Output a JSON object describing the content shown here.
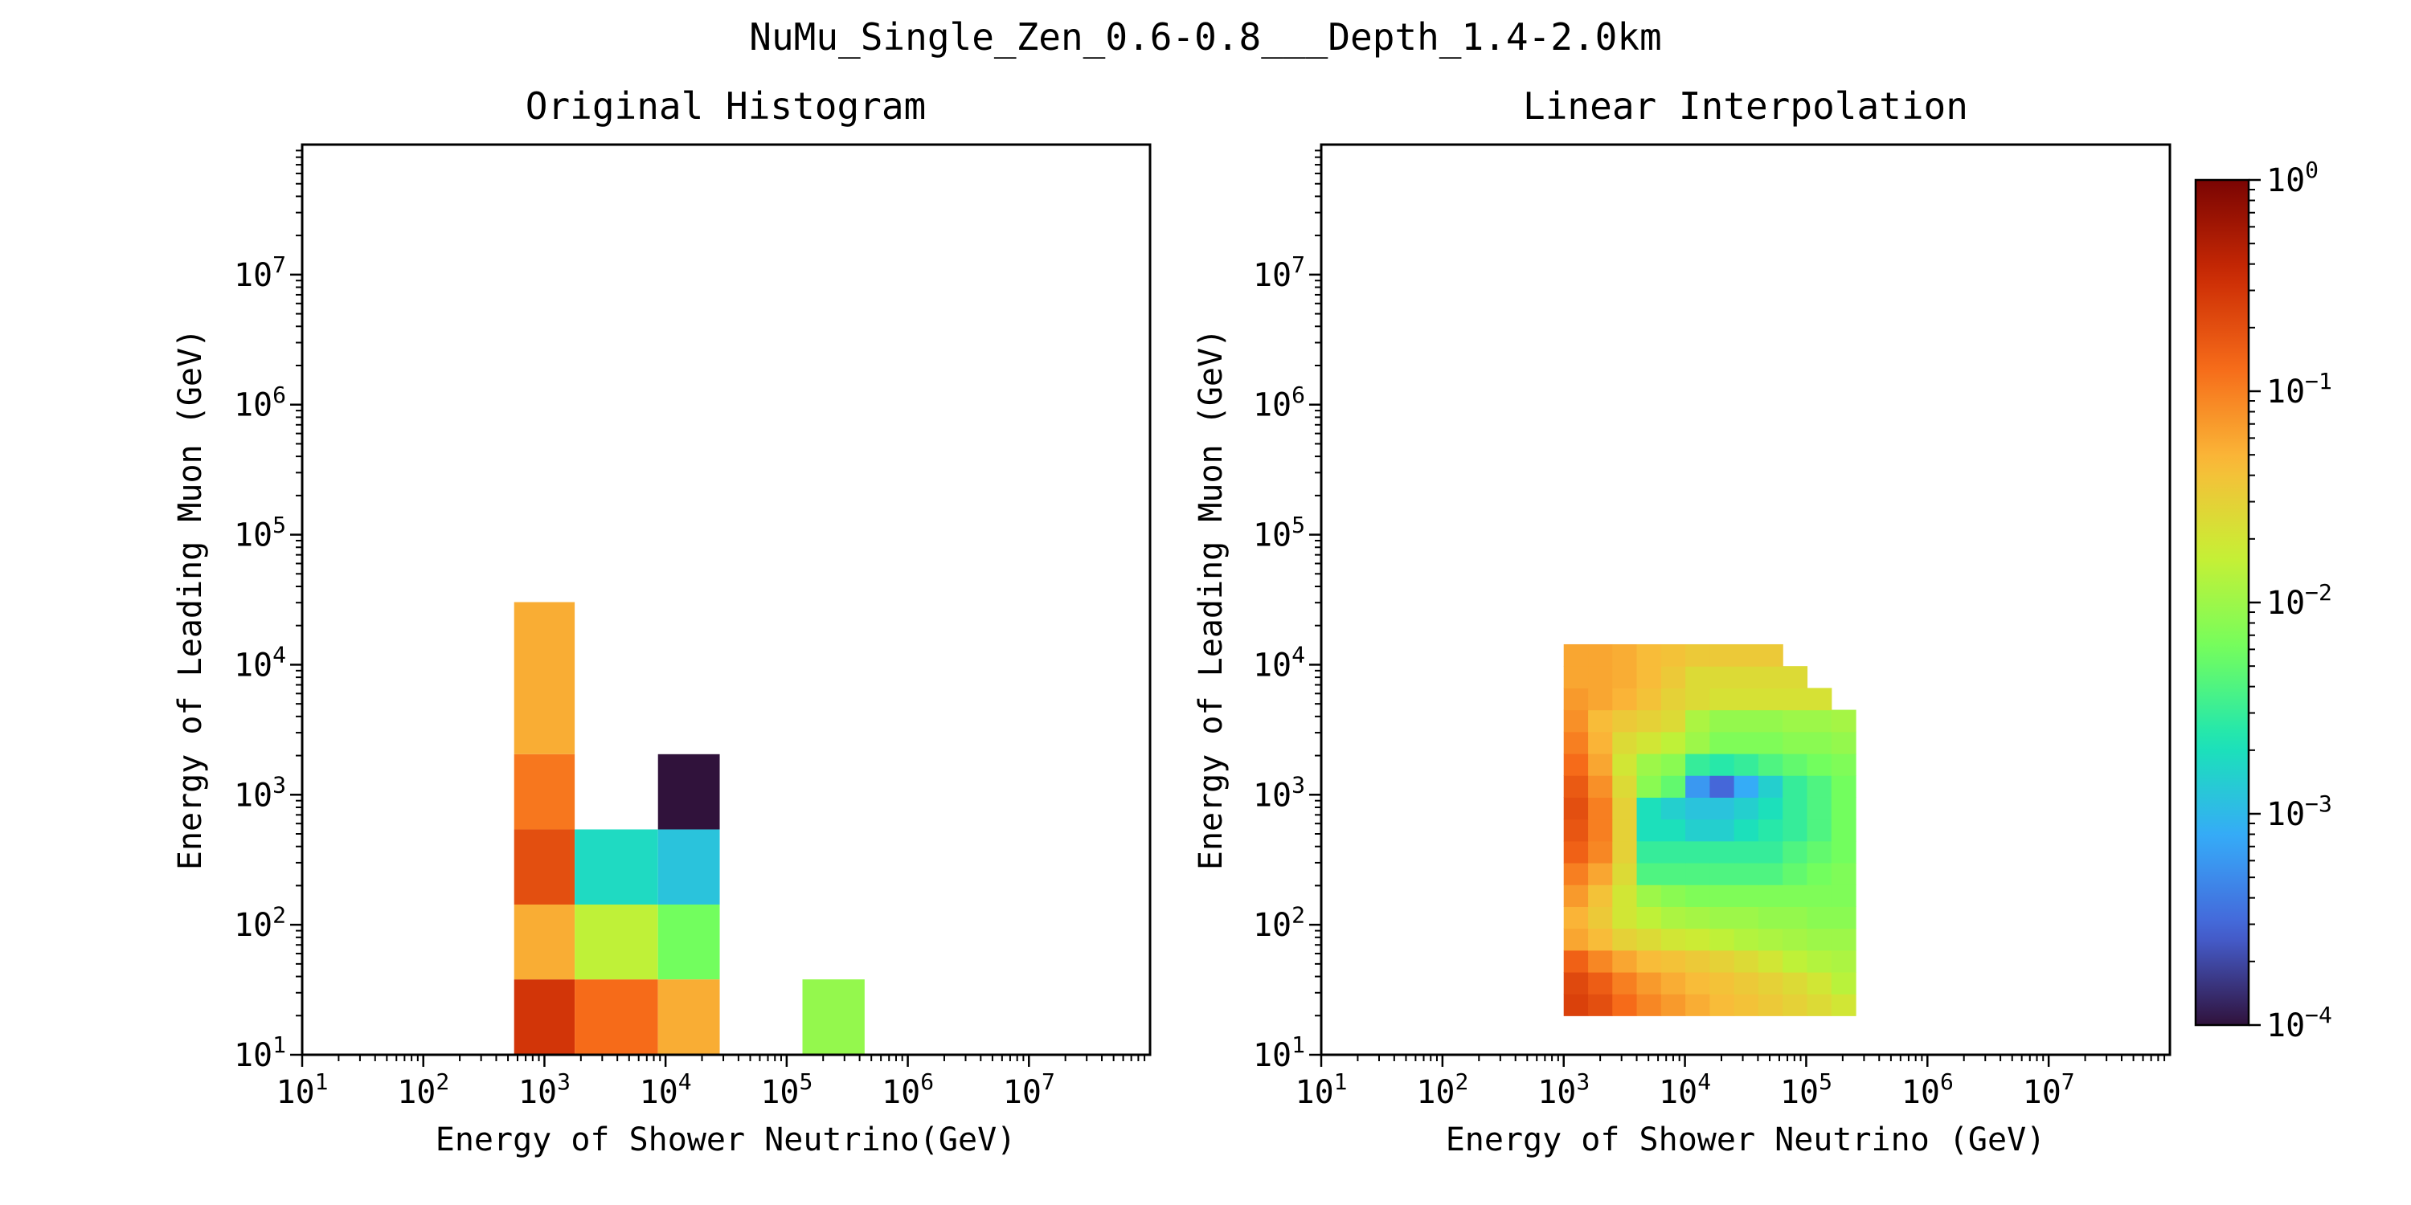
{
  "figure": {
    "suptitle": "NuMu_Single_Zen_0.6-0.8___Depth_1.4-2.0km"
  },
  "colorbar": {
    "scale": "log",
    "range": [
      0.0001,
      1
    ],
    "ticks": [
      0.0001,
      0.001,
      0.01,
      0.1,
      1
    ],
    "tick_labels": [
      {
        "base": "10",
        "exp": "−4"
      },
      {
        "base": "10",
        "exp": "−3"
      },
      {
        "base": "10",
        "exp": "−2"
      },
      {
        "base": "10",
        "exp": "−1"
      },
      {
        "base": "10",
        "exp": "0"
      }
    ],
    "colormap": "turbo",
    "colormap_stops": [
      "#30123b",
      "#4662d7",
      "#36aaf9",
      "#1ae4b6",
      "#72fe5e",
      "#c8ef34",
      "#faba39",
      "#f66b19",
      "#ca2a04",
      "#7a0403"
    ]
  },
  "chart_data": [
    {
      "type": "heatmap",
      "title": "Original Histogram",
      "xlabel": "Energy of Shower Neutrino(GeV)",
      "ylabel": "Energy of Leading Muon (GeV)",
      "x_scale": "log",
      "y_scale": "log",
      "xlim": [
        10,
        100000000
      ],
      "ylim": [
        10,
        100000000
      ],
      "x_ticks": [
        10,
        100,
        1000,
        10000,
        100000,
        1000000,
        10000000
      ],
      "y_ticks": [
        10,
        100,
        1000,
        10000,
        100000,
        1000000,
        10000000
      ],
      "tick_labels": [
        {
          "base": "10",
          "exp": "1"
        },
        {
          "base": "10",
          "exp": "2"
        },
        {
          "base": "10",
          "exp": "3"
        },
        {
          "base": "10",
          "exp": "4"
        },
        {
          "base": "10",
          "exp": "5"
        },
        {
          "base": "10",
          "exp": "6"
        },
        {
          "base": "10",
          "exp": "7"
        }
      ],
      "cells": [
        {
          "x0": 562,
          "x1": 1778,
          "y0": 10,
          "y1": 38,
          "value": 0.3
        },
        {
          "x0": 1778,
          "x1": 8660,
          "y0": 10,
          "y1": 38,
          "value": 0.13
        },
        {
          "x0": 8660,
          "x1": 28000,
          "y0": 10,
          "y1": 38,
          "value": 0.055
        },
        {
          "x0": 135000,
          "x1": 440000,
          "y0": 10,
          "y1": 38,
          "value": 0.009
        },
        {
          "x0": 562,
          "x1": 1778,
          "y0": 38,
          "y1": 143,
          "value": 0.055
        },
        {
          "x0": 1778,
          "x1": 8660,
          "y0": 38,
          "y1": 143,
          "value": 0.015
        },
        {
          "x0": 8660,
          "x1": 28000,
          "y0": 38,
          "y1": 143,
          "value": 0.006
        },
        {
          "x0": 562,
          "x1": 1778,
          "y0": 143,
          "y1": 541,
          "value": 0.2
        },
        {
          "x0": 1778,
          "x1": 8660,
          "y0": 143,
          "y1": 541,
          "value": 0.0018
        },
        {
          "x0": 8660,
          "x1": 28000,
          "y0": 143,
          "y1": 541,
          "value": 0.0012
        },
        {
          "x0": 562,
          "x1": 1778,
          "y0": 541,
          "y1": 2050,
          "value": 0.11
        },
        {
          "x0": 8660,
          "x1": 28000,
          "y0": 541,
          "y1": 2050,
          "value": 0.0001
        },
        {
          "x0": 562,
          "x1": 1778,
          "y0": 2050,
          "y1": 30300,
          "value": 0.055
        }
      ]
    },
    {
      "type": "heatmap",
      "title": "Linear Interpolation",
      "xlabel": "Energy of Shower Neutrino (GeV)",
      "ylabel": "Energy of Leading Muon (GeV)",
      "x_scale": "log",
      "y_scale": "log",
      "xlim": [
        10,
        100000000
      ],
      "ylim": [
        10,
        100000000
      ],
      "x_ticks": [
        10,
        100,
        1000,
        10000,
        100000,
        1000000,
        10000000
      ],
      "y_ticks": [
        10,
        100,
        1000,
        10000,
        100000,
        1000000,
        10000000
      ],
      "tick_labels": [
        {
          "base": "10",
          "exp": "1"
        },
        {
          "base": "10",
          "exp": "2"
        },
        {
          "base": "10",
          "exp": "3"
        },
        {
          "base": "10",
          "exp": "4"
        },
        {
          "base": "10",
          "exp": "5"
        },
        {
          "base": "10",
          "exp": "6"
        },
        {
          "base": "10",
          "exp": "7"
        }
      ],
      "grid": {
        "x_edges": [
          1000,
          1590,
          2520,
          4000,
          6350,
          10080,
          16000,
          25400,
          40300,
          64000,
          101600,
          161300,
          256000
        ],
        "y_edges": [
          20,
          29.4,
          43.3,
          63.8,
          93.9,
          138.3,
          203.6,
          299.8,
          441.4,
          650,
          957,
          1410,
          2075,
          3056,
          4500,
          6626,
          9756,
          14364
        ],
        "values": [
          [
            0.25,
            0.2,
            0.13,
            0.09,
            0.07,
            0.055,
            0.045,
            0.04,
            0.035,
            0.03,
            0.025,
            0.02
          ],
          [
            0.22,
            0.16,
            0.1,
            0.07,
            0.055,
            0.045,
            0.04,
            0.035,
            0.03,
            0.025,
            0.02,
            0.014
          ],
          [
            0.15,
            0.09,
            0.06,
            0.045,
            0.04,
            0.035,
            0.03,
            0.025,
            0.02,
            0.015,
            0.013,
            0.012
          ],
          [
            0.06,
            0.045,
            0.03,
            0.025,
            0.02,
            0.018,
            0.015,
            0.013,
            0.012,
            0.011,
            0.01,
            0.01
          ],
          [
            0.05,
            0.035,
            0.02,
            0.015,
            0.012,
            0.011,
            0.01,
            0.01,
            0.009,
            0.009,
            0.008,
            0.008
          ],
          [
            0.07,
            0.04,
            0.02,
            0.01,
            0.008,
            0.007,
            0.007,
            0.007,
            0.007,
            0.007,
            0.007,
            0.007
          ],
          [
            0.1,
            0.06,
            0.025,
            0.004,
            0.004,
            0.004,
            0.004,
            0.004,
            0.004,
            0.005,
            0.006,
            0.007
          ],
          [
            0.15,
            0.09,
            0.03,
            0.003,
            0.003,
            0.003,
            0.003,
            0.003,
            0.003,
            0.004,
            0.005,
            0.006
          ],
          [
            0.18,
            0.1,
            0.03,
            0.002,
            0.002,
            0.0015,
            0.0015,
            0.002,
            0.0025,
            0.003,
            0.004,
            0.006
          ],
          [
            0.2,
            0.1,
            0.03,
            0.002,
            0.0015,
            0.0012,
            0.0012,
            0.0015,
            0.002,
            0.003,
            0.004,
            0.006
          ],
          [
            0.17,
            0.08,
            0.025,
            0.008,
            0.005,
            0.0006,
            0.0003,
            0.0008,
            0.0015,
            0.003,
            0.004,
            0.006
          ],
          [
            0.13,
            0.06,
            0.02,
            0.01,
            0.008,
            0.003,
            0.0025,
            0.003,
            0.004,
            0.005,
            0.006,
            0.007
          ],
          [
            0.1,
            0.05,
            0.025,
            0.02,
            0.015,
            0.01,
            0.007,
            0.007,
            0.007,
            0.008,
            0.008,
            0.009
          ],
          [
            0.08,
            0.045,
            0.035,
            0.03,
            0.025,
            0.012,
            0.009,
            0.009,
            0.009,
            0.01,
            0.01,
            0.011
          ],
          [
            0.07,
            0.06,
            0.05,
            0.04,
            0.03,
            0.025,
            0.022,
            0.022,
            0.022,
            0.022,
            0.022,
            null
          ],
          [
            0.06,
            0.06,
            0.055,
            0.045,
            0.035,
            0.025,
            0.025,
            0.025,
            0.025,
            0.025,
            null,
            null
          ],
          [
            0.06,
            0.06,
            0.055,
            0.045,
            0.04,
            0.035,
            0.035,
            0.035,
            0.035,
            null,
            null,
            null
          ]
        ]
      }
    }
  ]
}
